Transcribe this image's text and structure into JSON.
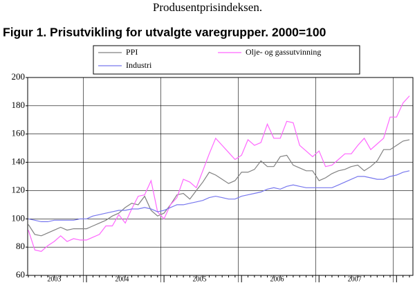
{
  "header": "Produsentprisindeksen.",
  "chart_data": {
    "type": "line",
    "title": "Figur 1. Prisutvikling for utvalgte varegrupper. 2000=100",
    "year_labels": [
      "2003",
      "2004",
      "2005",
      "2006",
      "2007"
    ],
    "categories": [
      null,
      null,
      null,
      null,
      null,
      null,
      null,
      null,
      null,
      null,
      null,
      null,
      null,
      null,
      null,
      null,
      null,
      null,
      null,
      null,
      null,
      null,
      null,
      null,
      null,
      null,
      null,
      null,
      null,
      null,
      null,
      null,
      null,
      null,
      null,
      null,
      null,
      null,
      null,
      null,
      null,
      null,
      null,
      null,
      null,
      null,
      null,
      null,
      null,
      null,
      null,
      null,
      null,
      null,
      null,
      null,
      null,
      null,
      null,
      null
    ],
    "series": [
      {
        "name": "PPI",
        "color": "#808080",
        "values": [
          96,
          89,
          88,
          90,
          92,
          94,
          92,
          93,
          93,
          93,
          95,
          97,
          99,
          102,
          104,
          108,
          111,
          110,
          116,
          106,
          102,
          104,
          110,
          117,
          118,
          114,
          120,
          126,
          133,
          131,
          128,
          125,
          127,
          133,
          133,
          135,
          141,
          137,
          137,
          144,
          145,
          138,
          136,
          134,
          134,
          127,
          129,
          132,
          134,
          135,
          137,
          138,
          134,
          137,
          141,
          149,
          149,
          152,
          155,
          156
        ]
      },
      {
        "name": "Olje- og gassutvinning",
        "color": "#ff66ff",
        "values": [
          92,
          78,
          77,
          81,
          84,
          88,
          84,
          86,
          85,
          85,
          87,
          89,
          95,
          95,
          103,
          97,
          107,
          116,
          117,
          127,
          105,
          100,
          110,
          115,
          128,
          126,
          122,
          134,
          146,
          157,
          152,
          147,
          142,
          145,
          156,
          152,
          154,
          167,
          157,
          157,
          169,
          168,
          152,
          148,
          144,
          148,
          137,
          138,
          142,
          146,
          146,
          152,
          157,
          149,
          153,
          157,
          172,
          172,
          182,
          187
        ]
      },
      {
        "name": "Industri",
        "color": "#7777ee",
        "values": [
          100,
          99,
          98,
          98,
          99,
          99,
          99,
          99,
          100,
          100,
          102,
          103,
          104,
          105,
          106,
          106,
          107,
          107,
          108,
          107,
          105,
          106,
          108,
          110,
          110,
          111,
          112,
          113,
          115,
          116,
          115,
          114,
          114,
          116,
          117,
          118,
          119,
          121,
          122,
          121,
          123,
          124,
          123,
          122,
          122,
          122,
          122,
          122,
          124,
          126,
          128,
          130,
          130,
          129,
          128,
          128,
          130,
          131,
          133,
          134
        ]
      }
    ],
    "ylim": [
      60,
      200
    ],
    "yticks": [
      60,
      80,
      100,
      120,
      140,
      160,
      180,
      200
    ],
    "grid": true
  }
}
